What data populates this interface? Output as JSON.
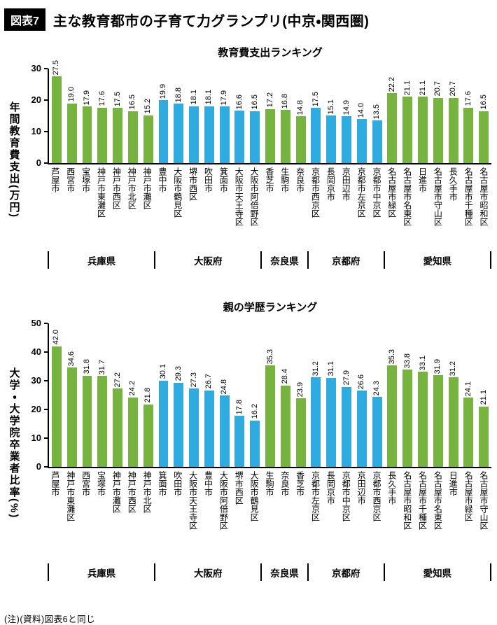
{
  "header": {
    "tag": "図表7",
    "title": "主な教育都市の子育て力グランプリ(中京・関西圏)"
  },
  "note": "(注)(資料)図表6と同じ",
  "colors": {
    "green": "#76b43f",
    "blue": "#2fabdf"
  },
  "chart_data": [
    {
      "type": "bar",
      "title": "教育費支出ランキング",
      "ylabel": "年間教育費支出(万円)",
      "ylim": [
        0,
        30
      ],
      "yticks": [
        0,
        10,
        20,
        30
      ],
      "grid": false,
      "legend": "none",
      "groups": [
        {
          "label": "兵庫県",
          "color": "green",
          "categories": [
            "芦屋市",
            "西宮市",
            "宝塚市",
            "神戸市東灘区",
            "神戸市西区",
            "神戸市北区",
            "神戸市灘区"
          ],
          "values": [
            27.5,
            19.0,
            17.9,
            17.6,
            17.5,
            16.5,
            15.2
          ]
        },
        {
          "label": "大阪府",
          "color": "blue",
          "categories": [
            "豊中市",
            "大阪市鶴見区",
            "堺市西区",
            "吹田市",
            "箕面市",
            "大阪市天王寺区",
            "大阪市阿倍野区"
          ],
          "values": [
            19.9,
            18.8,
            18.1,
            18.1,
            17.9,
            16.6,
            16.5
          ]
        },
        {
          "label": "奈良県",
          "color": "green",
          "categories": [
            "香芝市",
            "生駒市",
            "奈良市"
          ],
          "values": [
            17.2,
            16.8,
            14.8
          ]
        },
        {
          "label": "京都府",
          "color": "blue",
          "categories": [
            "京都市西京区",
            "長岡京市",
            "京田辺市",
            "京都市左京区",
            "京都市中京区"
          ],
          "values": [
            17.5,
            15.1,
            14.9,
            14.0,
            13.5
          ]
        },
        {
          "label": "愛知県",
          "color": "green",
          "categories": [
            "名古屋市緑区",
            "名古屋市名東区",
            "日進市",
            "名古屋市守山区",
            "長久手市",
            "名古屋市千種区",
            "名古屋市昭和区"
          ],
          "values": [
            22.2,
            21.1,
            21.1,
            20.7,
            20.7,
            17.6,
            16.5
          ]
        }
      ]
    },
    {
      "type": "bar",
      "title": "親の学歴ランキング",
      "ylabel": "大学・大学院卒業者比率(%)",
      "ylim": [
        0,
        50
      ],
      "yticks": [
        0,
        10,
        20,
        30,
        40,
        50
      ],
      "grid": false,
      "legend": "none",
      "groups": [
        {
          "label": "兵庫県",
          "color": "green",
          "categories": [
            "芦屋市",
            "神戸市東灘区",
            "西宮市",
            "宝塚市",
            "神戸市灘区",
            "神戸市西区",
            "神戸市北区"
          ],
          "values": [
            42.0,
            34.6,
            31.8,
            31.7,
            27.2,
            24.2,
            21.8
          ]
        },
        {
          "label": "大阪府",
          "color": "blue",
          "categories": [
            "箕面市",
            "吹田市",
            "大阪市天王寺区",
            "豊中市",
            "大阪市阿倍野区",
            "堺市西区",
            "大阪市鶴見区"
          ],
          "values": [
            30.1,
            29.3,
            27.3,
            26.7,
            24.8,
            17.8,
            16.2
          ]
        },
        {
          "label": "奈良県",
          "color": "green",
          "categories": [
            "生駒市",
            "奈良市",
            "香芝市"
          ],
          "values": [
            35.3,
            28.4,
            23.9
          ]
        },
        {
          "label": "京都府",
          "color": "blue",
          "categories": [
            "京都市左京区",
            "長岡京市",
            "京都市中京区",
            "京田辺市",
            "京都市西京区"
          ],
          "values": [
            31.2,
            31.1,
            27.9,
            26.6,
            24.3
          ]
        },
        {
          "label": "愛知県",
          "color": "green",
          "categories": [
            "長久手市",
            "名古屋市昭和区",
            "名古屋市千種区",
            "名古屋市名東区",
            "日進市",
            "名古屋市緑区",
            "名古屋市守山区"
          ],
          "values": [
            35.3,
            33.8,
            33.1,
            31.9,
            31.2,
            24.1,
            21.1
          ]
        }
      ]
    }
  ]
}
